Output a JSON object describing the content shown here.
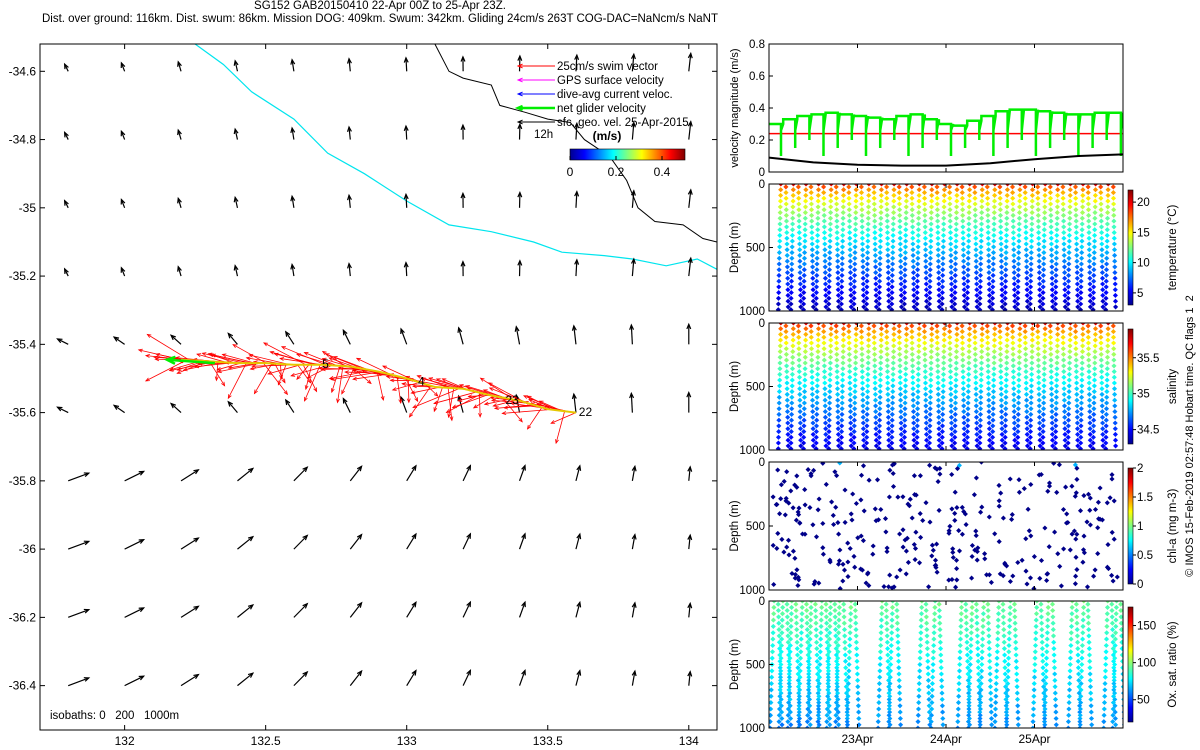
{
  "header": {
    "line1": "SG152 GAB20150410 22-Apr 00Z to 25-Apr 23Z.",
    "line2": "Dist. over ground: 116km. Dist. swum: 86km. Mission DOG: 409km. Swum: 342km. Gliding 24cm/s 263T COG-DAC=NaNcm/s NaNT"
  },
  "credit": "© IMOS 15-Feb-2019 02:57:48 Hobart time. QC flags 1  2",
  "chart_data": [
    {
      "type": "map",
      "id": "map",
      "xlim": [
        131.7,
        134.1
      ],
      "ylim": [
        -36.53,
        -34.52
      ],
      "xticks": [
        "132",
        "132.5",
        "133",
        "133.5",
        "134"
      ],
      "xtick_values": [
        132,
        132.5,
        133,
        133.5,
        134
      ],
      "yticks": [
        "-34.6",
        "-34.8",
        "-35",
        "-35.2",
        "-35.4",
        "-35.6",
        "-35.8",
        "-36",
        "-36.2",
        "-36.4"
      ],
      "ytick_values": [
        -34.6,
        -34.8,
        -35,
        -35.2,
        -35.4,
        -35.6,
        -35.8,
        -36,
        -36.2,
        -36.4
      ],
      "legend": {
        "placement": "top-right",
        "items": [
          {
            "label": "25cm/s swim vector",
            "color": "#ff0000"
          },
          {
            "label": "GPS surface velocity",
            "color": "#ff00ff"
          },
          {
            "label": "dive-avg current veloc.",
            "color": "#0000ff"
          },
          {
            "label": "net glider velocity",
            "color": "#00ee00"
          },
          {
            "label": "sfc. geo. vel. 25-Apr-2015",
            "color": "#000000"
          }
        ],
        "scale_label": "12h"
      },
      "colorbar": {
        "label": "(m/s)",
        "ticks": [
          "0",
          "0.2",
          "0.4"
        ],
        "tick_values": [
          0,
          0.2,
          0.4
        ],
        "range": [
          0,
          0.5
        ]
      },
      "isobaths_label": "isobaths: 0   200   1000m",
      "isobath_0": [
        [
          132.25,
          -34.52
        ],
        [
          132.35,
          -34.58
        ],
        [
          132.45,
          -34.66
        ],
        [
          132.6,
          -34.74
        ],
        [
          132.72,
          -34.84
        ],
        [
          132.85,
          -34.9
        ],
        [
          133.0,
          -34.98
        ],
        [
          133.15,
          -35.05
        ],
        [
          133.3,
          -35.07
        ],
        [
          133.45,
          -35.1
        ],
        [
          133.55,
          -35.13
        ],
        [
          133.7,
          -35.14
        ],
        [
          133.8,
          -35.15
        ],
        [
          133.92,
          -35.17
        ],
        [
          134.03,
          -35.15
        ],
        [
          134.1,
          -35.18
        ]
      ],
      "isobath_1000": [
        [
          133.1,
          -34.52
        ],
        [
          133.15,
          -34.6
        ],
        [
          133.2,
          -34.62
        ],
        [
          133.3,
          -34.64
        ],
        [
          133.33,
          -34.7
        ],
        [
          133.42,
          -34.72
        ],
        [
          133.5,
          -34.74
        ],
        [
          133.58,
          -34.75
        ],
        [
          133.63,
          -34.8
        ],
        [
          133.72,
          -34.85
        ],
        [
          133.78,
          -34.92
        ],
        [
          133.82,
          -35.0
        ],
        [
          133.88,
          -35.04
        ],
        [
          133.98,
          -35.05
        ],
        [
          134.05,
          -35.09
        ],
        [
          134.1,
          -35.1
        ]
      ],
      "track": [
        [
          133.6,
          -35.6
        ],
        [
          133.5,
          -35.59
        ],
        [
          133.4,
          -35.565
        ],
        [
          133.3,
          -35.55
        ],
        [
          133.2,
          -35.53
        ],
        [
          133.1,
          -35.525
        ],
        [
          133.0,
          -35.5
        ],
        [
          132.9,
          -35.48
        ],
        [
          132.8,
          -35.465
        ],
        [
          132.7,
          -35.46
        ],
        [
          132.6,
          -35.46
        ],
        [
          132.5,
          -35.455
        ],
        [
          132.4,
          -35.455
        ],
        [
          132.3,
          -35.45
        ],
        [
          132.2,
          -35.445
        ]
      ],
      "net_velocity_arrow": {
        "from": [
          132.32,
          -35.455
        ],
        "to": [
          132.15,
          -35.445
        ]
      },
      "track_day_labels": [
        {
          "text": "22",
          "lon": 133.61,
          "lat": -35.61
        },
        {
          "text": "23",
          "lon": 133.35,
          "lat": -35.575
        },
        {
          "text": "4",
          "lon": 133.04,
          "lat": -35.52
        },
        {
          "text": "5",
          "lon": 132.7,
          "lat": -35.47
        }
      ],
      "geo_vel_grid": {
        "lons": [
          131.8,
          132.0,
          132.2,
          132.4,
          132.6,
          132.8,
          133.0,
          133.2,
          133.4,
          133.6,
          133.8,
          134.0
        ],
        "lats": [
          -34.6,
          -34.8,
          -35.0,
          -35.2,
          -35.4,
          -35.6,
          -35.8,
          -36.0,
          -36.2,
          -36.4
        ]
      }
    },
    {
      "type": "line",
      "id": "velocity",
      "ylabel": "velocity magnitude (m/s)",
      "ylim": [
        0,
        0.8
      ],
      "yticks": [
        "0",
        "0.2",
        "0.4",
        "0.6",
        "0.8"
      ],
      "ytick_values": [
        0,
        0.2,
        0.4,
        0.6,
        0.8
      ],
      "xlim": [
        22.0,
        26.0
      ],
      "series": [
        {
          "color": "#ff0000",
          "kind": "flat",
          "level": 0.24
        },
        {
          "color": "#00ee00",
          "kind": "sawtooth",
          "top": [
            0.3,
            0.33,
            0.35,
            0.36,
            0.37,
            0.36,
            0.35,
            0.34,
            0.33,
            0.35,
            0.36,
            0.33,
            0.3,
            0.29,
            0.32,
            0.35,
            0.38,
            0.39,
            0.39,
            0.38,
            0.37,
            0.36,
            0.36,
            0.37,
            0.37
          ],
          "bottom": 0.1
        },
        {
          "color": "#000000",
          "kind": "curve",
          "x": [
            22.0,
            22.5,
            23.0,
            23.5,
            24.0,
            24.5,
            25.0,
            25.5,
            26.0
          ],
          "y": [
            0.09,
            0.06,
            0.045,
            0.04,
            0.04,
            0.055,
            0.08,
            0.1,
            0.11
          ]
        }
      ]
    },
    {
      "type": "scatter",
      "id": "temperature",
      "ylabel": "Depth (m)",
      "cbar_label": "temperature (°C)",
      "cbar_ticks": [
        "20",
        "15",
        "10",
        "5"
      ],
      "cbar_tick_values": [
        20,
        15,
        10,
        5
      ],
      "cbar_range": [
        3,
        22
      ],
      "yticks": [
        "0",
        "500",
        "1000"
      ],
      "ytick_values": [
        0,
        500,
        1000
      ],
      "ylim": [
        0,
        1000
      ],
      "dives": 27,
      "surface_value": 20,
      "deep_value": 4
    },
    {
      "type": "scatter",
      "id": "salinity",
      "ylabel": "Depth (m)",
      "cbar_label": "salinity",
      "cbar_ticks": [
        "35.5",
        "35",
        "34.5"
      ],
      "cbar_tick_values": [
        35.5,
        35,
        34.5
      ],
      "cbar_range": [
        34.3,
        35.9
      ],
      "yticks": [
        "0",
        "500",
        "1000"
      ],
      "ytick_values": [
        0,
        500,
        1000
      ],
      "ylim": [
        0,
        1000
      ],
      "dives": 27,
      "surface_value": 35.75,
      "deep_value": 34.45
    },
    {
      "type": "scatter",
      "id": "chla",
      "ylabel": "Depth (m)",
      "cbar_label": "chl-a (mg m-3)",
      "cbar_ticks": [
        "2",
        "1.5",
        "1",
        "0.5",
        "0"
      ],
      "cbar_tick_values": [
        2,
        1.5,
        1,
        0.5,
        0
      ],
      "cbar_range": [
        0,
        2
      ],
      "yticks": [
        "0",
        "500",
        "1000"
      ],
      "ytick_values": [
        0,
        500,
        1000
      ],
      "ylim": [
        0,
        1000
      ],
      "dives": 27,
      "surface_value": 0.15,
      "deep_value": 0.02
    },
    {
      "type": "scatter",
      "id": "oxygen",
      "ylabel": "Depth (m)",
      "cbar_label": "Ox. sat. ratio (%)",
      "cbar_ticks": [
        "150",
        "100",
        "50"
      ],
      "cbar_tick_values": [
        150,
        100,
        50
      ],
      "cbar_range": [
        20,
        175
      ],
      "yticks": [
        "0",
        "500",
        "1000"
      ],
      "ytick_values": [
        0,
        500,
        1000
      ],
      "ylim": [
        0,
        1000
      ],
      "xticks": [
        "23Apr",
        "24Apr",
        "25Apr"
      ],
      "xtick_values": [
        23,
        24,
        25
      ],
      "xlim": [
        22.0,
        26.0
      ],
      "surface_value": 95,
      "deep_value": 60,
      "dive_groups": [
        [
          22.08,
          22.18,
          22.28,
          22.4,
          22.5
        ],
        [
          22.62,
          22.72,
          22.82,
          22.95
        ],
        [
          23.3,
          23.42
        ],
        [
          23.75,
          23.9
        ],
        [
          24.2,
          24.32,
          24.45
        ],
        [
          24.62,
          24.75
        ],
        [
          25.05,
          25.18
        ],
        [
          25.45,
          25.58
        ],
        [
          25.85,
          25.95
        ]
      ]
    }
  ]
}
